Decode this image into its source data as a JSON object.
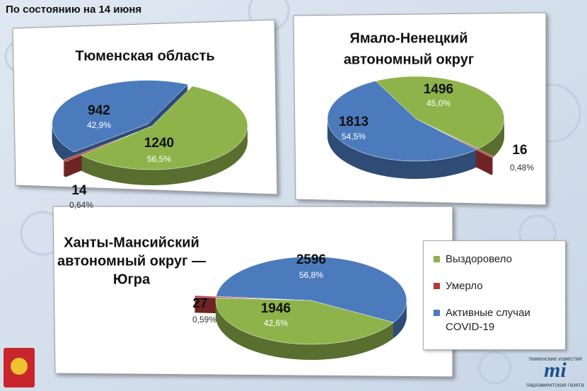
{
  "header": {
    "title": "По состоянию на 14 июня"
  },
  "legend": {
    "labels": [
      "Выздоровело",
      "Умерло",
      "Активные случаи COVID-19"
    ],
    "colors": [
      "#8fb34b",
      "#b23a3a",
      "#4c7bbd"
    ]
  },
  "chart_data": [
    {
      "type": "pie",
      "title": [
        "Тюменская область"
      ],
      "values": [
        1240,
        14,
        942
      ],
      "percents": [
        {
          "value": 56.5,
          "label": "56,5%"
        },
        {
          "value": 0.64,
          "label": "0,64%"
        },
        {
          "value": 42.9,
          "label": "42,9%"
        }
      ]
    },
    {
      "type": "pie",
      "title": [
        "Ямало-Ненецкий",
        "автономный округ"
      ],
      "values": [
        1496,
        16,
        1813
      ],
      "percents": [
        {
          "value": 45.0,
          "label": "45,0%"
        },
        {
          "value": 0.48,
          "label": "0,48%"
        },
        {
          "value": 54.5,
          "label": "54,5%"
        }
      ]
    },
    {
      "type": "pie",
      "title": [
        "Ханты-Мансийский",
        "автономный округ —",
        "Югра"
      ],
      "values": [
        1946,
        27,
        2596
      ],
      "percents": [
        {
          "value": 42.6,
          "label": "42,6%"
        },
        {
          "value": 0.59,
          "label": "0,59%"
        },
        {
          "value": 56.8,
          "label": "56,8%"
        }
      ]
    }
  ],
  "footer": {
    "logo_top": "тюменские известия",
    "logo_mark": "mi",
    "logo_bottom": "парламентская газета"
  }
}
